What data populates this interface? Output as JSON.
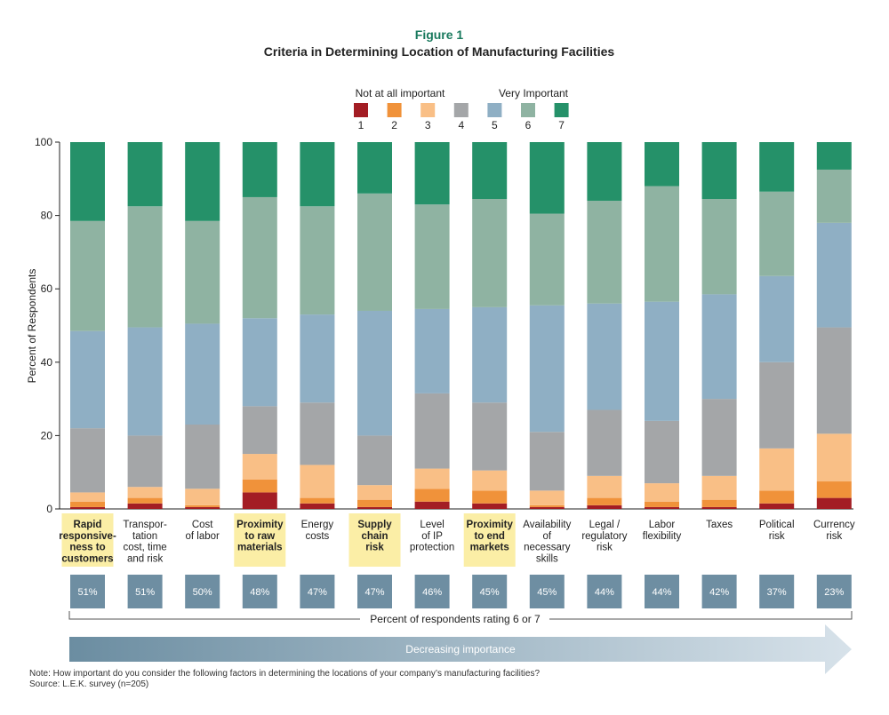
{
  "figure_label": "Figure 1",
  "chart_data": {
    "type": "bar",
    "stacked": true,
    "title": "Criteria in Determining Location of Manufacturing Facilities",
    "xlabel": "",
    "ylabel": "Percent of Respondents",
    "ylim": [
      0,
      100
    ],
    "yticks": [
      "0",
      "20",
      "40",
      "60",
      "80",
      "100"
    ],
    "legend": {
      "low_label": "Not at all important",
      "high_label": "Very Important",
      "placement": "top-center"
    },
    "categories": [
      {
        "lines": [
          "Rapid",
          "responsive-",
          "ness to",
          "customers"
        ],
        "highlight": true
      },
      {
        "lines": [
          "Transpor-",
          "tation",
          "cost, time",
          "and risk"
        ],
        "highlight": false
      },
      {
        "lines": [
          "Cost",
          "of labor"
        ],
        "highlight": false
      },
      {
        "lines": [
          "Proximity",
          "to raw",
          "materials"
        ],
        "highlight": true
      },
      {
        "lines": [
          "Energy",
          "costs"
        ],
        "highlight": false
      },
      {
        "lines": [
          "Supply",
          "chain",
          "risk"
        ],
        "highlight": true
      },
      {
        "lines": [
          "Level",
          "of IP",
          "protection"
        ],
        "highlight": false
      },
      {
        "lines": [
          "Proximity",
          "to end",
          "markets"
        ],
        "highlight": true
      },
      {
        "lines": [
          "Availability",
          "of",
          "necessary",
          "skills"
        ],
        "highlight": false
      },
      {
        "lines": [
          "Legal /",
          "regulatory",
          "risk"
        ],
        "highlight": false
      },
      {
        "lines": [
          "Labor",
          "flexibility"
        ],
        "highlight": false
      },
      {
        "lines": [
          "Taxes"
        ],
        "highlight": false
      },
      {
        "lines": [
          "Political",
          "risk"
        ],
        "highlight": false
      },
      {
        "lines": [
          "Currency",
          "risk"
        ],
        "highlight": false
      }
    ],
    "series": [
      {
        "name": "1",
        "color": "#a31d24",
        "values": [
          0.5,
          1.5,
          0.5,
          4.5,
          1.5,
          0.5,
          2,
          1.5,
          0.5,
          1,
          0.5,
          0.5,
          1.5,
          3
        ]
      },
      {
        "name": "2",
        "color": "#f0923a",
        "values": [
          1.5,
          1.5,
          0.5,
          3.5,
          1.5,
          2,
          3.5,
          3.5,
          0.5,
          2,
          1.5,
          2,
          3.5,
          4.5
        ]
      },
      {
        "name": "3",
        "color": "#f9bf86",
        "values": [
          2.5,
          3,
          4.5,
          7,
          9,
          4,
          5.5,
          5.5,
          4,
          6,
          5,
          6.5,
          11.5,
          13
        ]
      },
      {
        "name": "4",
        "color": "#a4a6a8",
        "values": [
          17.5,
          14,
          17.5,
          13,
          17,
          13.5,
          20.5,
          18.5,
          16,
          18,
          17,
          21,
          23.5,
          29
        ]
      },
      {
        "name": "5",
        "color": "#8fafc4",
        "values": [
          26.5,
          29.5,
          27.5,
          24,
          24,
          34,
          23,
          26,
          34.5,
          29,
          32.5,
          28.5,
          23.5,
          28.5
        ]
      },
      {
        "name": "6",
        "color": "#8fb3a2",
        "values": [
          30,
          33,
          28,
          33,
          29.5,
          32,
          28.5,
          29.5,
          25,
          28,
          31.5,
          26,
          23,
          14.5
        ]
      },
      {
        "name": "7",
        "color": "#259169",
        "values": [
          21.5,
          17.5,
          21.5,
          15,
          17.5,
          14,
          17,
          15.5,
          19.5,
          16,
          12,
          15.5,
          13.5,
          7.5
        ]
      }
    ],
    "percent_6_or_7": [
      "51%",
      "51%",
      "50%",
      "48%",
      "47%",
      "47%",
      "46%",
      "45%",
      "45%",
      "44%",
      "44%",
      "42%",
      "37%",
      "23%"
    ],
    "percent_caption": "Percent of respondents rating 6 or 7",
    "arrow_label": "Decreasing importance"
  },
  "note": "Note: How important do you consider the following factors in determining the locations of your company’s manufacturing facilities?",
  "source": "Source: L.E.K. survey (n=205)"
}
